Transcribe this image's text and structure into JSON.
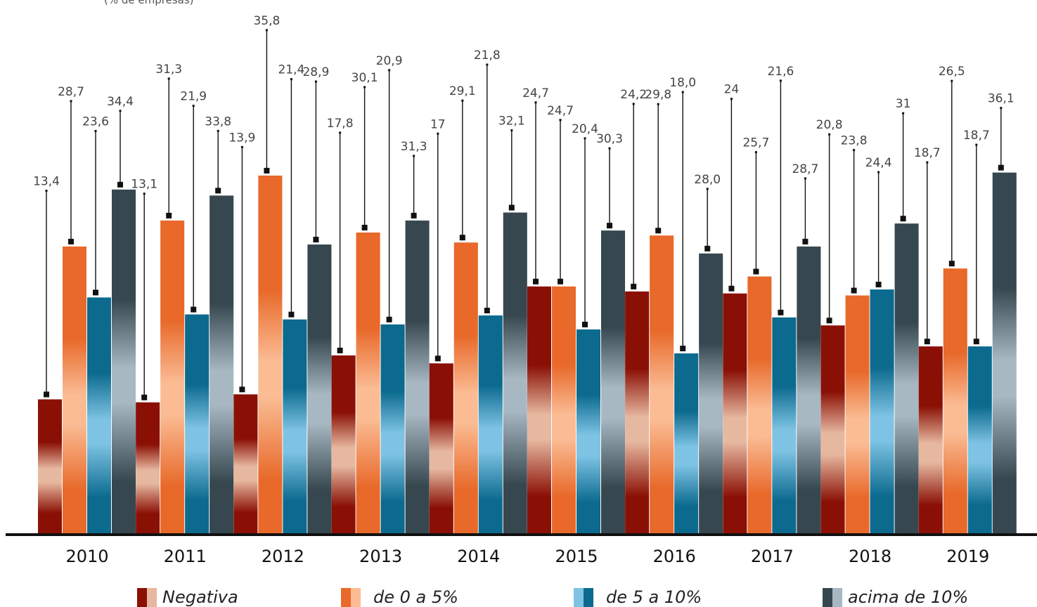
{
  "subtitle": "(% de empresas)",
  "colors": {
    "Negativa": [
      "#8a1005",
      "#e7b8a0"
    ],
    "de 0 a 5%": [
      "#e8692a",
      "#fbbc94"
    ],
    "de 5 a 10%": [
      "#0b6a8e",
      "#7ec3e4"
    ],
    "acima de 10%": [
      "#36474f",
      "#a7b8c3"
    ],
    "axis": "#111111",
    "label": "#444444"
  },
  "legend": [
    "Negativa",
    "de 0 a 5%",
    "de 5 a 10%",
    "acima de 10%"
  ],
  "chart_data": {
    "type": "bar",
    "categories": [
      "2010",
      "2011",
      "2012",
      "2013",
      "2014",
      "2015",
      "2016",
      "2017",
      "2018",
      "2019"
    ],
    "series": [
      {
        "name": "Negativa",
        "values": [
          13.4,
          13.1,
          13.9,
          17.8,
          17,
          24.7,
          24.2,
          24,
          20.8,
          18.7
        ],
        "labels": [
          "13,4",
          "13,1",
          "13,9",
          "17,8",
          "17",
          "24,7",
          "24,2",
          "24",
          "20,8",
          "18,7"
        ]
      },
      {
        "name": "de 0 a 5%",
        "values": [
          28.7,
          31.3,
          35.8,
          30.1,
          29.1,
          24.7,
          29.8,
          25.7,
          23.8,
          26.5
        ],
        "labels": [
          "28,7",
          "31,3",
          "35,8",
          "30,1",
          "29,1",
          "24,7",
          "29,8",
          "25,7",
          "23,8",
          "26,5"
        ]
      },
      {
        "name": "de 5 a 10%",
        "values": [
          23.6,
          21.9,
          21.4,
          20.9,
          21.8,
          20.4,
          18.0,
          21.6,
          24.4,
          18.7
        ],
        "labels": [
          "23,6",
          "21,9",
          "21,4",
          "20,9",
          "21,8",
          "20,4",
          "18,0",
          "21,6",
          "24,4",
          "18,7"
        ]
      },
      {
        "name": "acima de 10%",
        "values": [
          34.4,
          33.8,
          28.9,
          31.3,
          32.1,
          30.3,
          28.0,
          28.7,
          31,
          36.1
        ],
        "labels": [
          "34,4",
          "33,8",
          "28,9",
          "31,3",
          "32,1",
          "30,3",
          "28,0",
          "28,7",
          "31",
          "36,1"
        ]
      }
    ],
    "ylim": [
      0,
      40
    ],
    "grid": false,
    "legend_position": "bottom"
  }
}
